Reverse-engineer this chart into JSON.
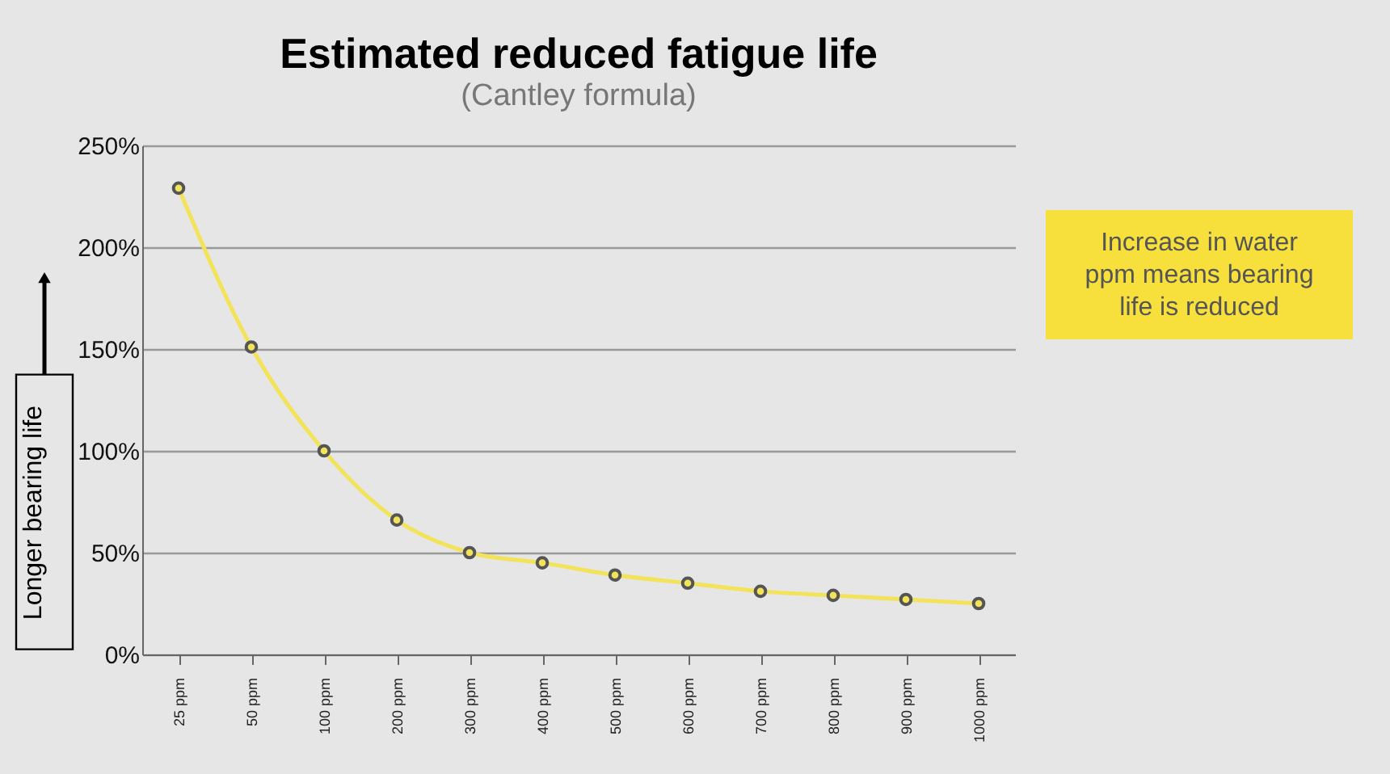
{
  "chart_data": {
    "type": "line",
    "title": "Estimated reduced fatigue life",
    "subtitle": "(Cantley formula)",
    "ylabel": "Longer bearing life",
    "categories": [
      "25 ppm",
      "50 ppm",
      "100 ppm",
      "200 ppm",
      "300 ppm",
      "400 ppm",
      "500 ppm",
      "600 ppm",
      "700 ppm",
      "800 ppm",
      "900 ppm",
      "1000 ppm"
    ],
    "series": [
      {
        "color": "#f2e35a",
        "values": [
          229,
          151,
          100,
          66,
          50,
          45,
          39,
          35,
          31,
          29,
          27,
          25
        ]
      }
    ],
    "ylim": [
      0,
      250
    ],
    "yticks": [
      {
        "value": 0,
        "label": "0%"
      },
      {
        "value": 50,
        "label": "50%"
      },
      {
        "value": 100,
        "label": "100%"
      },
      {
        "value": 150,
        "label": "150%"
      },
      {
        "value": 200,
        "label": "200%"
      },
      {
        "value": 250,
        "label": "250%"
      }
    ],
    "grid": "y",
    "marker": "circle",
    "line_style": "solid",
    "annotations": [
      "Increase in water ppm means bearing life is reduced"
    ]
  }
}
